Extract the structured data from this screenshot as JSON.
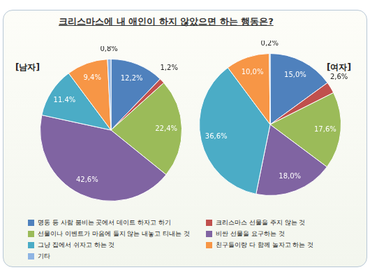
{
  "title": "크리스마스에 내 애인이 하지 않았으면 하는 행동은?",
  "chart_data": [
    {
      "type": "pie",
      "title": "[남자]",
      "categories": [
        "명동 등 사람 붐비는 곳에서 데이트 하자고 하기",
        "크리스마스 선물을 주지 않는 것",
        "선물이나 이벤트가 마음에 들지 않는 내놓고 티내는 것",
        "비싼 선물을 요구하는 것",
        "그냥 집에서 쉬자고 하는 것",
        "친구들이랑 다 함께 놀자고 하는 것",
        "기타"
      ],
      "values": [
        12.2,
        1.2,
        22.4,
        42.6,
        11.4,
        9.4,
        0.8
      ],
      "value_labels": [
        "12,2%",
        "1,2%",
        "22,4%",
        "42,6%",
        "11.4%",
        "9,4%",
        "0,8%"
      ],
      "colors": [
        "#4f81bd",
        "#c0504d",
        "#9bbb59",
        "#8064a2",
        "#4bacc6",
        "#f79646",
        "#8eb4e3"
      ],
      "data_labels": true,
      "legend": "bottom"
    },
    {
      "type": "pie",
      "title": "[여자]",
      "categories": [
        "명동 등 사람 붐비는 곳에서 데이트 하자고 하기",
        "크리스마스 선물을 주지 않는 것",
        "선물이나 이벤트가 마음에 들지 않는 내놓고 티내는 것",
        "비싼 선물을 요구하는 것",
        "그냥 집에서 쉬자고 하는 것",
        "친구들이랑 다 함께 놀자고 하는 것",
        "기타"
      ],
      "values": [
        15.0,
        2.6,
        17.6,
        18.0,
        36.6,
        10.0,
        0.2
      ],
      "value_labels": [
        "15,0%",
        "2,6%",
        "17,6%",
        "18,0%",
        "36,6%",
        "10,0%",
        "0,2%"
      ],
      "colors": [
        "#4f81bd",
        "#c0504d",
        "#9bbb59",
        "#8064a2",
        "#4bacc6",
        "#f79646",
        "#8eb4e3"
      ],
      "data_labels": true,
      "legend": "bottom"
    }
  ]
}
